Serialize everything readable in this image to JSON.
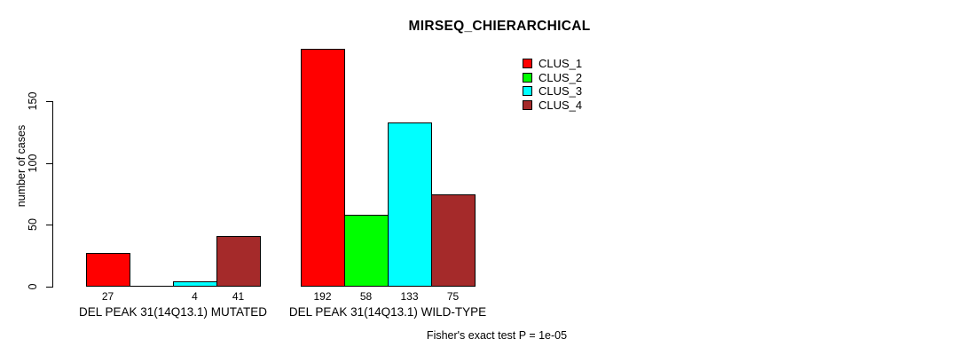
{
  "chart_data": {
    "type": "bar",
    "title": "MIRSEQ_CHIERARCHICAL",
    "ylabel": "number of cases",
    "xlabel": "",
    "annotation": "Fisher's exact test P = 1e-05",
    "ylim": [
      0,
      150
    ],
    "yticks": [
      0,
      50,
      100,
      150
    ],
    "grid": false,
    "legend_position": "top-right",
    "categories": [
      "DEL PEAK 31(14Q13.1) MUTATED",
      "DEL PEAK 31(14Q13.1) WILD-TYPE"
    ],
    "series": [
      {
        "name": "CLUS_1",
        "color": "#FF0000",
        "values": [
          27,
          192
        ]
      },
      {
        "name": "CLUS_2",
        "color": "#00FF00",
        "values": [
          0,
          58
        ]
      },
      {
        "name": "CLUS_3",
        "color": "#00FFFF",
        "values": [
          4,
          133
        ]
      },
      {
        "name": "CLUS_4",
        "color": "#A52A2A",
        "values": [
          41,
          75
        ]
      }
    ],
    "bar_value_labels": [
      [
        "27",
        "",
        "4",
        "41"
      ],
      [
        "192",
        "58",
        "133",
        "75"
      ]
    ],
    "legend": [
      {
        "name": "CLUS_1",
        "color": "#FF0000"
      },
      {
        "name": "CLUS_2",
        "color": "#00FF00"
      },
      {
        "name": "CLUS_3",
        "color": "#00FFFF"
      },
      {
        "name": "CLUS_4",
        "color": "#A52A2A"
      }
    ],
    "axis_color": "#000000",
    "background_color": "#FFFFFF"
  }
}
